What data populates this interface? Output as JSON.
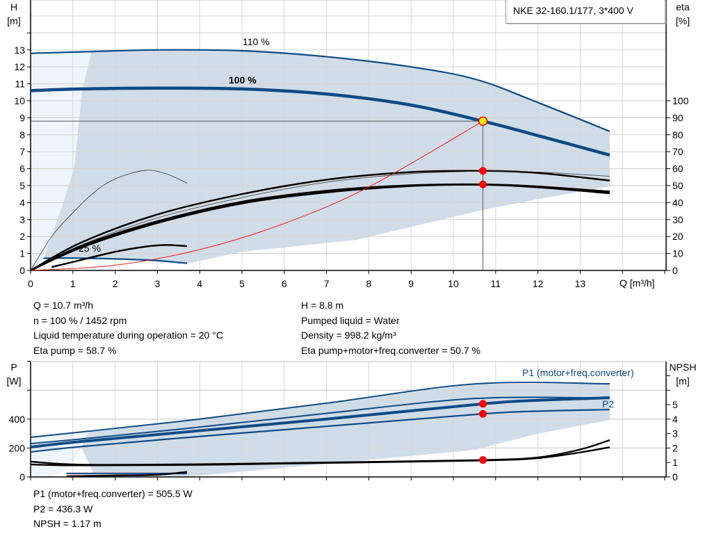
{
  "colors": {
    "curve": "#0c4a85",
    "region": "#d0dce8",
    "region_light": "#eef5fc",
    "efficiency": "#000000",
    "system": "#ff0000",
    "duty_point": "#ffee00",
    "marker": "#ff0000",
    "grid": "#d6d6d6"
  },
  "legend_title": "NKE 32-160.1/177, 3*400 V",
  "chart_data": [
    {
      "type": "line",
      "title": "",
      "xlabel": "Q [m³/h]",
      "ylabel": "H\n[m]",
      "ylabel_top": "H",
      "ylabel_unit": "[m]",
      "y2label_top": "eta",
      "y2label_unit": "[%]",
      "xlim": [
        0,
        15
      ],
      "ylim": [
        0,
        16
      ],
      "y2lim": [
        0,
        160
      ],
      "xticks": [
        0,
        1,
        2,
        3,
        4,
        5,
        6,
        7,
        8,
        9,
        10,
        11,
        12,
        13
      ],
      "yticks": [
        0,
        1,
        2,
        3,
        4,
        5,
        6,
        7,
        8,
        9,
        10,
        11,
        12,
        13
      ],
      "y2ticks": [
        0,
        10,
        20,
        30,
        40,
        50,
        60,
        70,
        80,
        90,
        100
      ],
      "grid": true,
      "series": [
        {
          "name": "110 %",
          "kind": "head",
          "points": [
            [
              0,
              12.8
            ],
            [
              1.4,
              12.9
            ],
            [
              3,
              13.0
            ],
            [
              5,
              12.95
            ],
            [
              7,
              12.6
            ],
            [
              9,
              12.0
            ],
            [
              10.55,
              11.25
            ],
            [
              12,
              9.9
            ],
            [
              13.7,
              8.2
            ]
          ]
        },
        {
          "name": "100 %",
          "kind": "head-duty",
          "points": [
            [
              0,
              10.6
            ],
            [
              1.2,
              10.7
            ],
            [
              3,
              10.75
            ],
            [
              5,
              10.7
            ],
            [
              7,
              10.4
            ],
            [
              9,
              9.75
            ],
            [
              10.7,
              8.8
            ],
            [
              12,
              7.95
            ],
            [
              13.7,
              6.8
            ]
          ]
        },
        {
          "name": "25 %",
          "kind": "head",
          "points": [
            [
              0.3,
              0.72
            ],
            [
              1,
              0.73
            ],
            [
              2,
              0.68
            ],
            [
              3,
              0.58
            ],
            [
              3.7,
              0.42
            ]
          ]
        },
        {
          "kind": "eta",
          "points": [
            [
              0,
              0
            ],
            [
              1.2,
              16.5
            ],
            [
              3,
              33
            ],
            [
              5,
              45
            ],
            [
              7,
              53.5
            ],
            [
              9,
              58
            ],
            [
              10.7,
              58.7
            ],
            [
              12,
              57.5
            ],
            [
              13.7,
              53
            ]
          ]
        },
        {
          "kind": "eta-thin",
          "points": [
            [
              0,
              0
            ],
            [
              1.2,
              15
            ],
            [
              3,
              31
            ],
            [
              5,
              43
            ],
            [
              7,
              52
            ],
            [
              9,
              57
            ],
            [
              10.7,
              58.5
            ],
            [
              12,
              58
            ],
            [
              13.7,
              55.5
            ]
          ]
        },
        {
          "kind": "eta",
          "points": [
            [
              0,
              0
            ],
            [
              1.2,
              14.5
            ],
            [
              3,
              29
            ],
            [
              5,
              40.5
            ],
            [
              7,
              47
            ],
            [
              9,
              50.2
            ],
            [
              10.7,
              50.7
            ],
            [
              12,
              49.5
            ],
            [
              13.7,
              46.5
            ]
          ]
        },
        {
          "kind": "eta",
          "points": [
            [
              0,
              0
            ],
            [
              1.2,
              13.5
            ],
            [
              3,
              28
            ],
            [
              5,
              39.5
            ],
            [
              7,
              46
            ],
            [
              9,
              49.8
            ],
            [
              10.7,
              50.5
            ],
            [
              12,
              49
            ],
            [
              13.7,
              45.5
            ]
          ]
        },
        {
          "kind": "eta-thin",
          "points": [
            [
              0,
              0
            ],
            [
              0.5,
              20
            ],
            [
              1,
              34
            ],
            [
              1.5,
              46
            ],
            [
              2,
              54
            ],
            [
              2.7,
              59
            ],
            [
              3.2,
              57
            ],
            [
              3.7,
              51.5
            ]
          ]
        },
        {
          "kind": "eta",
          "points": [
            [
              0.5,
              2
            ],
            [
              1,
              5
            ],
            [
              2,
              11
            ],
            [
              2.7,
              14
            ],
            [
              3.2,
              15
            ],
            [
              3.7,
              14.3
            ]
          ]
        },
        {
          "kind": "system",
          "points": [
            [
              0,
              0
            ],
            [
              2,
              0.31
            ],
            [
              4,
              1.23
            ],
            [
              6,
              2.77
            ],
            [
              8,
              4.92
            ],
            [
              10.7,
              8.8
            ]
          ]
        }
      ],
      "region_light": [
        [
          0,
          0
        ],
        [
          0,
          12.8
        ],
        [
          1.44,
          12.9
        ],
        [
          1.22,
          10.6
        ],
        [
          1.03,
          6
        ],
        [
          0.76,
          3.9
        ],
        [
          0.31,
          0.7
        ]
      ],
      "region": [
        [
          1.44,
          12.9
        ],
        [
          3,
          13.0
        ],
        [
          5,
          12.95
        ],
        [
          7,
          12.6
        ],
        [
          9,
          12.0
        ],
        [
          10.55,
          11.25
        ],
        [
          12,
          9.9
        ],
        [
          13.7,
          8.2
        ],
        [
          13.7,
          4.96
        ],
        [
          12,
          4.2
        ],
        [
          10.7,
          3.57
        ],
        [
          7.7,
          1.8
        ],
        [
          5,
          1.1
        ],
        [
          3.7,
          0.4
        ],
        [
          3,
          0.58
        ],
        [
          2,
          0.68
        ],
        [
          1,
          0.73
        ],
        [
          0.31,
          0.7
        ],
        [
          0.76,
          3.9
        ],
        [
          1.03,
          6
        ],
        [
          1.22,
          10.6
        ]
      ],
      "duty_point": {
        "q": 10.7,
        "h": 8.8
      },
      "eta_markers": [
        58.7,
        50.7
      ]
    },
    {
      "type": "line",
      "title": "",
      "ylabel_top": "P",
      "ylabel_unit": "[W]",
      "y2label_top": "NPSH",
      "y2label_unit": "[m]",
      "xlim": [
        0,
        15
      ],
      "ylim": [
        0,
        800
      ],
      "y2lim": [
        0,
        8
      ],
      "yticks": [
        0,
        200,
        400,
        600
      ],
      "yticklabels": [
        "0",
        "200",
        "400",
        ""
      ],
      "y2ticks": [
        0,
        1,
        2,
        3,
        4,
        5,
        6
      ],
      "y2ticklabels": [
        "0",
        "1",
        "2",
        "3",
        "4",
        "5",
        ""
      ],
      "grid": true,
      "series": [
        {
          "name": "P1 (motor+freq.converter)",
          "kind": "power-thin",
          "points": [
            [
              0,
              274
            ],
            [
              1.4,
              317
            ],
            [
              4,
              400
            ],
            [
              7,
              510
            ],
            [
              10.55,
              644
            ],
            [
              13.7,
              644
            ]
          ]
        },
        {
          "kind": "power-thin",
          "points": [
            [
              0,
              230
            ],
            [
              1.4,
              268
            ],
            [
              4,
              345
            ],
            [
              7,
              440
            ],
            [
              10.55,
              543
            ],
            [
              13.7,
              545
            ]
          ]
        },
        {
          "kind": "power-duty",
          "points": [
            [
              0,
              207
            ],
            [
              1.2,
              245
            ],
            [
              4,
              320
            ],
            [
              7,
              400
            ],
            [
              10.7,
              505.5
            ],
            [
              12,
              530
            ],
            [
              13.7,
              548
            ]
          ]
        },
        {
          "name": "P2",
          "kind": "power",
          "points": [
            [
              0,
              173
            ],
            [
              1.2,
              210
            ],
            [
              4,
              280
            ],
            [
              7,
              350
            ],
            [
              10.7,
              436.3
            ],
            [
              12,
              455
            ],
            [
              13.7,
              466
            ]
          ]
        },
        {
          "kind": "power",
          "points": [
            [
              0.85,
              24
            ],
            [
              3.7,
              24
            ]
          ]
        },
        {
          "kind": "npsh-black",
          "points": [
            [
              0.85,
              0.05
            ],
            [
              2,
              0.1
            ],
            [
              3,
              0.15
            ],
            [
              3.7,
              0.35
            ]
          ]
        },
        {
          "kind": "npsh",
          "points": [
            [
              0,
              1.06
            ],
            [
              1.2,
              0.85
            ],
            [
              4,
              0.88
            ],
            [
              7,
              1.0
            ],
            [
              10.7,
              1.17
            ],
            [
              12,
              1.35
            ],
            [
              13,
              1.9
            ],
            [
              13.7,
              2.55
            ]
          ]
        },
        {
          "kind": "npsh",
          "points": [
            [
              0,
              0.86
            ],
            [
              1.2,
              0.8
            ],
            [
              4,
              0.84
            ],
            [
              7,
              0.97
            ],
            [
              10.7,
              1.14
            ],
            [
              12,
              1.3
            ],
            [
              13,
              1.7
            ],
            [
              13.7,
              2.05
            ]
          ]
        }
      ],
      "region": [
        [
          1.4,
          317
        ],
        [
          4,
          400
        ],
        [
          7,
          510
        ],
        [
          10.55,
          644
        ],
        [
          13.7,
          644
        ],
        [
          13.7,
          394
        ],
        [
          12,
          300
        ],
        [
          10.5,
          187
        ],
        [
          7,
          90
        ],
        [
          3.7,
          2
        ],
        [
          1.5,
          20
        ],
        [
          1.2,
          200
        ],
        [
          1.3,
          280
        ]
      ],
      "region_light": [
        [
          0,
          0
        ],
        [
          0,
          274
        ],
        [
          1.4,
          317
        ],
        [
          1.3,
          280
        ],
        [
          1.2,
          200
        ],
        [
          0.9,
          60
        ],
        [
          0.5,
          0
        ]
      ],
      "markers": [
        505.5,
        436.3
      ],
      "npsh_marker": 1.17
    }
  ],
  "results_left": [
    "Q = 10.7 m³/h",
    "n = 100 % / 1452 rpm",
    "Liquid temperature during operation = 20 °C",
    "Eta pump = 58.7 %"
  ],
  "results_right": [
    "H = 8.8 m",
    "Pumped liquid = Water",
    "Density = 998.2 kg/m³",
    "Eta pump+motor+freq.converter = 50.7 %"
  ],
  "results_power": [
    "P1 (motor+freq.converter) = 505.5 W",
    "P2 = 436.3 W",
    "NPSH = 1.17 m"
  ]
}
